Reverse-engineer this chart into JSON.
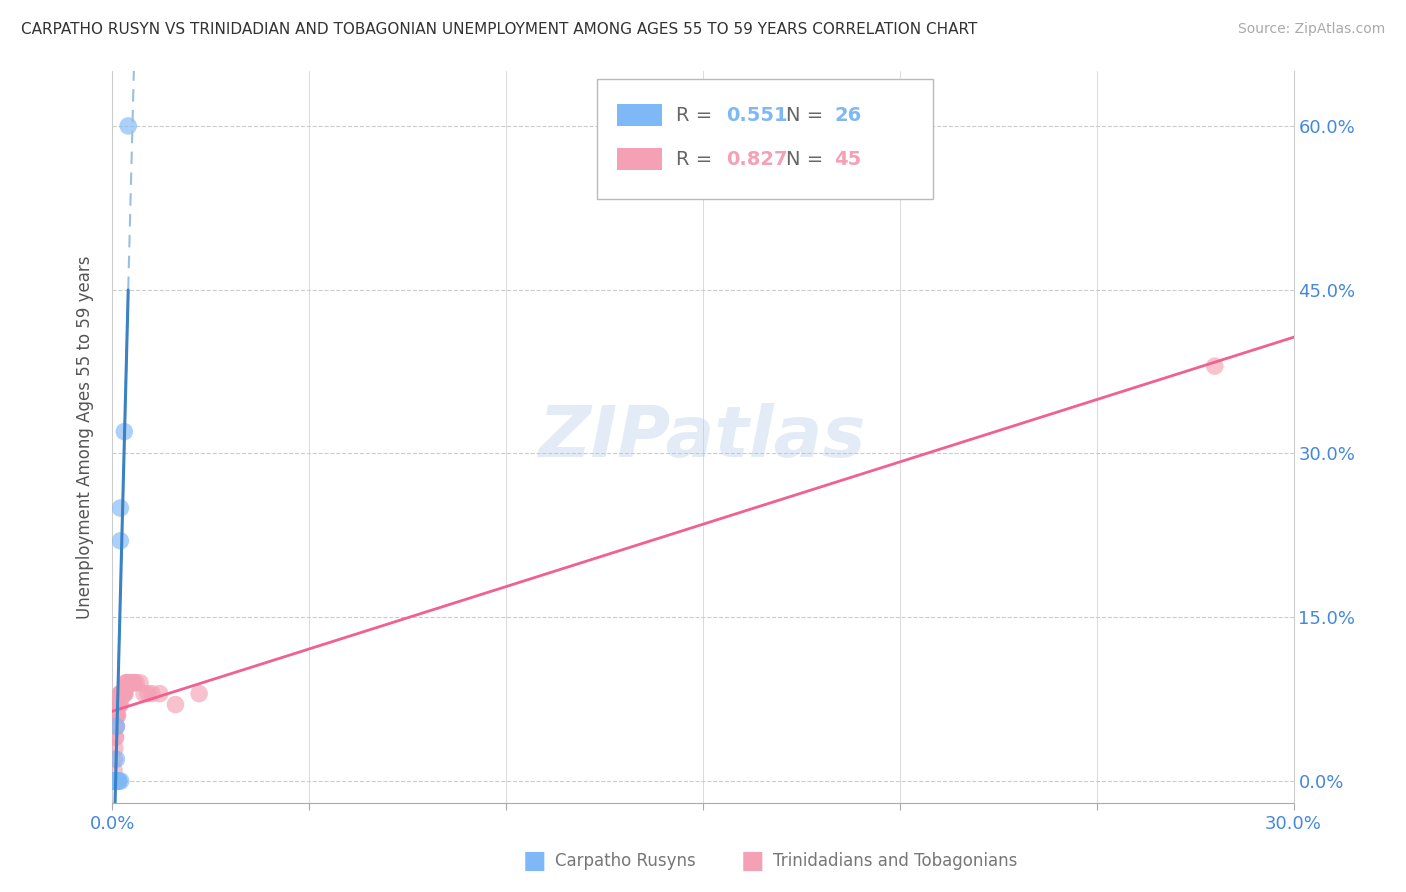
{
  "title": "CARPATHO RUSYN VS TRINIDADIAN AND TOBAGONIAN UNEMPLOYMENT AMONG AGES 55 TO 59 YEARS CORRELATION CHART",
  "source": "Source: ZipAtlas.com",
  "xlim": [
    0.0,
    0.3
  ],
  "ylim": [
    -0.02,
    0.65
  ],
  "ytick_vals": [
    0.0,
    0.15,
    0.3,
    0.45,
    0.6
  ],
  "ytick_labels": [
    "0.0%",
    "15.0%",
    "30.0%",
    "45.0%",
    "60.0%"
  ],
  "xtick_vals": [
    0.0,
    0.05,
    0.1,
    0.15,
    0.2,
    0.25,
    0.3
  ],
  "xtick_label_left": "0.0%",
  "xtick_label_right": "30.0%",
  "legend1_color": "#7EB8F7",
  "legend2_color": "#F4A0B5",
  "scatter1_color": "#7EB8F7",
  "scatter2_color": "#F4A0B5",
  "line1_color": "#3A82C4",
  "line2_color": "#F06090",
  "line1_dashed_color": "#9ABFE0",
  "watermark_text": "ZIPatlas",
  "ylabel": "Unemployment Among Ages 55 to 59 years",
  "legend_label1": "Carpatho Rusyns",
  "legend_label2": "Trinidadians and Tobagonians",
  "R1": 0.551,
  "N1": 26,
  "R2": 0.827,
  "N2": 45,
  "carpatho_x": [
    0.0002,
    0.0003,
    0.0004,
    0.0005,
    0.0005,
    0.0006,
    0.0006,
    0.0007,
    0.0007,
    0.0008,
    0.0008,
    0.0009,
    0.001,
    0.001,
    0.001,
    0.001,
    0.0012,
    0.0013,
    0.0014,
    0.0015,
    0.0016,
    0.002,
    0.002,
    0.0021,
    0.003,
    0.004
  ],
  "carpatho_y": [
    0.0,
    0.0,
    0.0,
    0.0,
    0.0,
    0.0,
    0.0,
    0.0,
    0.0,
    0.0,
    0.0,
    0.0,
    0.0,
    0.0,
    0.02,
    0.05,
    0.0,
    0.0,
    0.0,
    0.0,
    0.0,
    0.22,
    0.25,
    0.0,
    0.32,
    0.6
  ],
  "trinidad_x": [
    0.0002,
    0.0003,
    0.0004,
    0.0005,
    0.0006,
    0.0007,
    0.0008,
    0.0009,
    0.001,
    0.001,
    0.001,
    0.0012,
    0.0013,
    0.0014,
    0.0015,
    0.0016,
    0.0018,
    0.002,
    0.002,
    0.002,
    0.0022,
    0.0024,
    0.0026,
    0.0028,
    0.003,
    0.003,
    0.0032,
    0.0034,
    0.0036,
    0.004,
    0.004,
    0.0042,
    0.0045,
    0.005,
    0.005,
    0.0055,
    0.006,
    0.007,
    0.008,
    0.009,
    0.01,
    0.012,
    0.016,
    0.022,
    0.28
  ],
  "trinidad_y": [
    0.0,
    0.0,
    0.01,
    0.02,
    0.03,
    0.04,
    0.04,
    0.05,
    0.05,
    0.06,
    0.06,
    0.06,
    0.06,
    0.07,
    0.07,
    0.07,
    0.07,
    0.07,
    0.08,
    0.08,
    0.08,
    0.08,
    0.08,
    0.08,
    0.08,
    0.08,
    0.08,
    0.09,
    0.09,
    0.09,
    0.09,
    0.09,
    0.09,
    0.09,
    0.09,
    0.09,
    0.09,
    0.09,
    0.08,
    0.08,
    0.08,
    0.08,
    0.07,
    0.08,
    0.38
  ]
}
